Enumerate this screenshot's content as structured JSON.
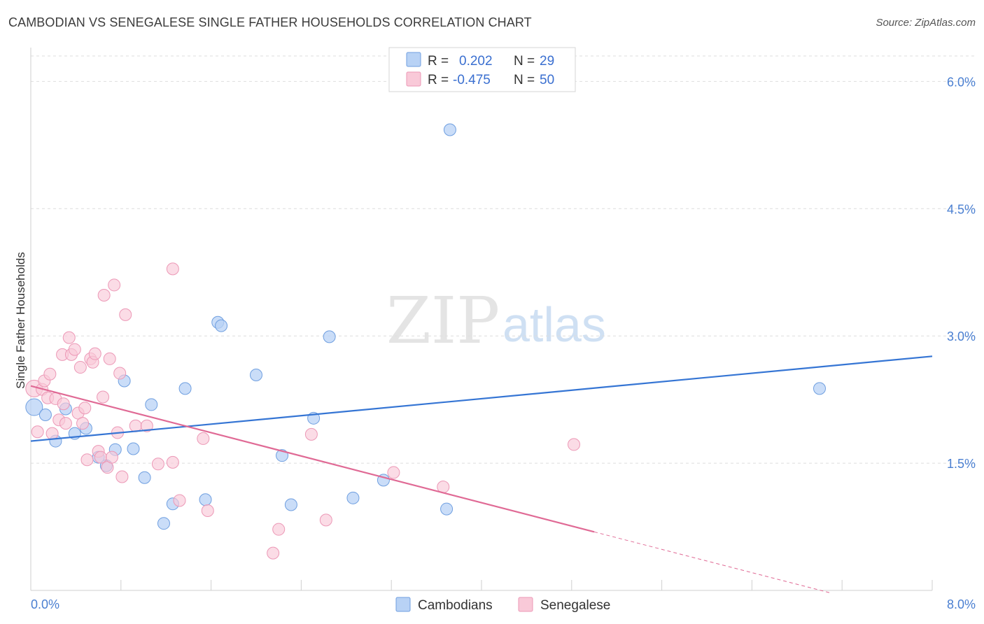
{
  "title": "CAMBODIAN VS SENEGALESE SINGLE FATHER HOUSEHOLDS CORRELATION CHART",
  "source": "Source: ZipAtlas.com",
  "watermark": {
    "zip": "ZIP",
    "atlas": "atlas"
  },
  "colors": {
    "cambodian_fill": "#b8d2f5",
    "cambodian_stroke": "#6f9fe0",
    "cambodian_line": "#3575d4",
    "senegalese_fill": "#f9c9d8",
    "senegalese_stroke": "#ec98b6",
    "senegalese_line": "#e06a95",
    "tick_text": "#4a7fd1",
    "grid": "#dedede"
  },
  "legend": {
    "rows": [
      {
        "r_label": "R =",
        "r_value": "0.202",
        "n_label": "N =",
        "n_value": "29",
        "series": "cambodian"
      },
      {
        "r_label": "R =",
        "r_value": "-0.475",
        "n_label": "N =",
        "n_value": "50",
        "series": "senegalese"
      }
    ]
  },
  "bottom_legend": [
    "Cambodians",
    "Senegalese"
  ],
  "chart_data": {
    "type": "scatter",
    "title": "CAMBODIAN VS SENEGALESE SINGLE FATHER HOUSEHOLDS CORRELATION CHART",
    "xlabel": "",
    "ylabel": "Single Father Households",
    "xlim": [
      0,
      8
    ],
    "ylim": [
      0,
      6.3
    ],
    "x_tick_labels": [
      "0.0%",
      "8.0%"
    ],
    "y_ticks": [
      1.5,
      3.0,
      4.5,
      6.0
    ],
    "y_tick_labels": [
      "1.5%",
      "3.0%",
      "4.5%",
      "6.0%"
    ],
    "grid": true,
    "legend_position": "top-center",
    "series": [
      {
        "name": "Cambodians",
        "points": [
          [
            0.03,
            2.16
          ],
          [
            0.13,
            2.07
          ],
          [
            0.22,
            1.76
          ],
          [
            0.31,
            2.14
          ],
          [
            0.39,
            1.85
          ],
          [
            0.49,
            1.91
          ],
          [
            0.6,
            1.57
          ],
          [
            0.67,
            1.47
          ],
          [
            0.75,
            1.66
          ],
          [
            0.83,
            2.47
          ],
          [
            0.91,
            1.67
          ],
          [
            1.01,
            1.33
          ],
          [
            1.07,
            2.19
          ],
          [
            1.18,
            0.79
          ],
          [
            1.26,
            1.02
          ],
          [
            1.37,
            2.38
          ],
          [
            1.55,
            1.07
          ],
          [
            1.66,
            3.16
          ],
          [
            1.69,
            3.12
          ],
          [
            2.0,
            2.54
          ],
          [
            2.31,
            1.01
          ],
          [
            2.23,
            1.59
          ],
          [
            2.51,
            2.03
          ],
          [
            2.65,
            2.99
          ],
          [
            2.86,
            1.09
          ],
          [
            3.13,
            1.3
          ],
          [
            3.69,
            0.96
          ],
          [
            3.72,
            5.43
          ],
          [
            7.0,
            2.38
          ]
        ],
        "trend": {
          "x_start": 0,
          "y_start": 1.76,
          "x_end": 8,
          "y_end": 2.76
        }
      },
      {
        "name": "Senegalese",
        "points": [
          [
            0.03,
            2.38
          ],
          [
            0.06,
            1.87
          ],
          [
            0.1,
            2.37
          ],
          [
            0.12,
            2.47
          ],
          [
            0.15,
            2.27
          ],
          [
            0.17,
            2.55
          ],
          [
            0.19,
            1.85
          ],
          [
            0.22,
            2.26
          ],
          [
            0.25,
            2.01
          ],
          [
            0.28,
            2.78
          ],
          [
            0.29,
            2.2
          ],
          [
            0.31,
            1.97
          ],
          [
            0.34,
            2.98
          ],
          [
            0.36,
            2.78
          ],
          [
            0.39,
            2.84
          ],
          [
            0.42,
            2.09
          ],
          [
            0.44,
            2.63
          ],
          [
            0.46,
            1.97
          ],
          [
            0.48,
            2.15
          ],
          [
            0.5,
            1.54
          ],
          [
            0.53,
            2.73
          ],
          [
            0.55,
            2.69
          ],
          [
            0.57,
            2.79
          ],
          [
            0.6,
            1.64
          ],
          [
            0.62,
            1.57
          ],
          [
            0.64,
            2.28
          ],
          [
            0.65,
            3.48
          ],
          [
            0.68,
            1.45
          ],
          [
            0.7,
            2.73
          ],
          [
            0.72,
            1.57
          ],
          [
            0.74,
            3.6
          ],
          [
            0.77,
            1.86
          ],
          [
            0.79,
            2.56
          ],
          [
            0.81,
            1.34
          ],
          [
            0.84,
            3.25
          ],
          [
            0.93,
            1.94
          ],
          [
            1.03,
            1.94
          ],
          [
            1.13,
            1.49
          ],
          [
            1.26,
            1.51
          ],
          [
            1.32,
            1.06
          ],
          [
            1.26,
            3.79
          ],
          [
            1.53,
            1.79
          ],
          [
            1.57,
            0.94
          ],
          [
            2.15,
            0.44
          ],
          [
            2.2,
            0.72
          ],
          [
            2.49,
            1.84
          ],
          [
            2.62,
            0.83
          ],
          [
            3.22,
            1.39
          ],
          [
            3.66,
            1.22
          ],
          [
            4.82,
            1.72
          ]
        ],
        "trend": {
          "x_start": 0,
          "y_start": 2.41,
          "x_end": 5.0,
          "y_end": 0.69,
          "dashed_to_x": 7.1,
          "dashed_to_y": -0.03
        }
      }
    ]
  }
}
